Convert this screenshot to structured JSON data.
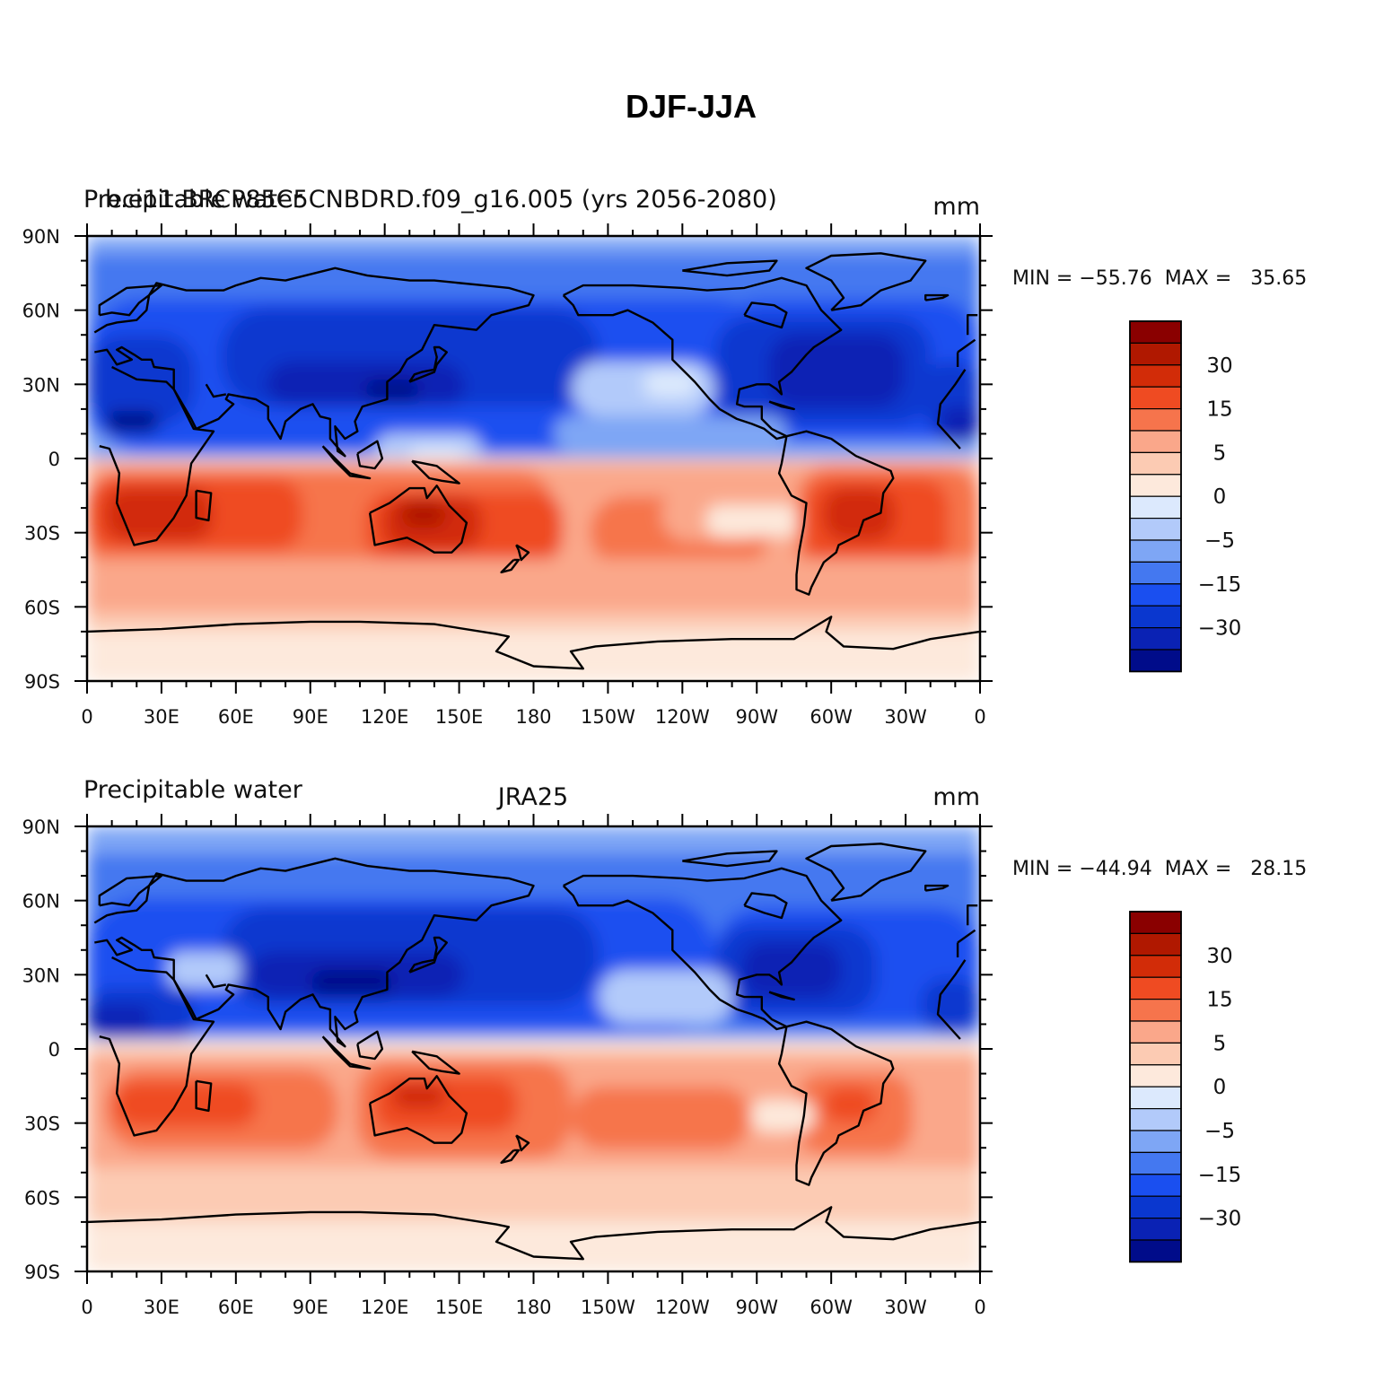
{
  "title": "DJF-JJA",
  "palette": [
    "#000c8a",
    "#0a22b4",
    "#0a37cf",
    "#1a4ff0",
    "#4478f0",
    "#7ea6f5",
    "#b2cafa",
    "#dce9fd",
    "#fde9dc",
    "#fccbb3",
    "#faa78a",
    "#f6744c",
    "#ef4b22",
    "#d22c08",
    "#b01800",
    "#8a0000"
  ],
  "colorbar": {
    "labels": [
      "30",
      "15",
      "5",
      "0",
      "−5",
      "−15",
      "−30"
    ],
    "boundaries": [
      -45,
      -30,
      -20,
      -15,
      -10,
      -5,
      -2,
      0,
      2,
      5,
      10,
      15,
      20,
      30,
      45
    ]
  },
  "x_ticks": [
    "0",
    "30E",
    "60E",
    "90E",
    "120E",
    "150E",
    "180",
    "150W",
    "120W",
    "90W",
    "60W",
    "30W",
    "0"
  ],
  "y_ticks": [
    "90N",
    "60N",
    "30N",
    "0",
    "30S",
    "60S",
    "90S"
  ],
  "panels": [
    {
      "left": "Precipitable water",
      "center": "b.e11.BRCP85C5CNBDRD.f09_g16.005 (yrs 2056-2080)",
      "right": "mm",
      "stats": "MIN = −55.76  MAX =   35.65",
      "min": -55.76,
      "max": 35.65
    },
    {
      "left": "Precipitable water",
      "center": "JRA25",
      "right": "mm",
      "stats": "MIN = −44.94  MAX =   28.15",
      "min": -44.94,
      "max": 28.15
    }
  ]
}
